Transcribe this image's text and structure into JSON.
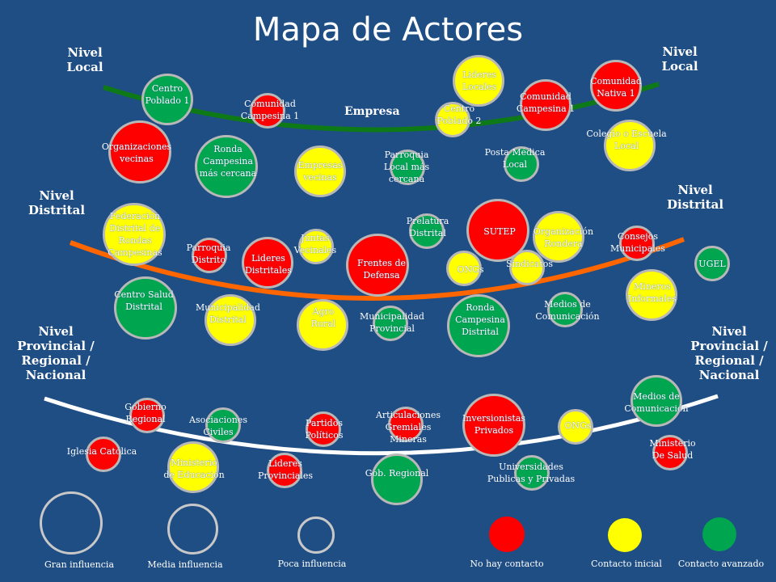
{
  "title": "Mapa de Actores",
  "levels": {
    "local_left": "Nivel\nLocal",
    "local_right": "Nivel\nLocal",
    "distrital_left": "Nivel\nDistrital",
    "distrital_right": "Nivel\nDistrital",
    "provincial_left": "Nivel\nProvincial /\nRegional /\nNacional",
    "provincial_right": "Nivel\nProvincial /\nRegional /\nNacional"
  },
  "empresa": "Empresa",
  "colors": {
    "background": "#1f4e84",
    "no_contact": "#ff0000",
    "initial_contact": "#ffff00",
    "advanced_contact": "#00a550",
    "arc_local": "#0e7a17",
    "arc_distrital": "#ff6600",
    "arc_provincial": "#ffffff"
  },
  "actors": [
    {
      "label": "Centro\nPoblado 1",
      "contact": "green",
      "influence": "media"
    },
    {
      "label": "Comunidad\nCampesina 1",
      "contact": "red",
      "influence": "poca"
    },
    {
      "label": "Lideres\nLocales",
      "contact": "yellow",
      "influence": "media"
    },
    {
      "label": "Centro\nPoblado 2",
      "contact": "yellow",
      "influence": "poca"
    },
    {
      "label": "Comunidad\nCampesina 1",
      "contact": "red",
      "influence": "media"
    },
    {
      "label": "Comunidad\nNativa 1",
      "contact": "red",
      "influence": "media"
    },
    {
      "label": "Organizaciones\nvecinas",
      "contact": "red",
      "influence": "gran"
    },
    {
      "label": "Ronda\nCampesina\nmás cercana",
      "contact": "green",
      "influence": "gran"
    },
    {
      "label": "Empresas\nvecinas",
      "contact": "yellow",
      "influence": "media"
    },
    {
      "label": "Parroquia\nLocal más\ncercana",
      "contact": "green",
      "influence": "poca"
    },
    {
      "label": "Posta Médica\nLocal",
      "contact": "green",
      "influence": "poca"
    },
    {
      "label": "Colegio o Escuela\nLocal",
      "contact": "yellow",
      "influence": "media"
    },
    {
      "label": "Federación\nDistrital de\nRondas\nCampesinas",
      "contact": "yellow",
      "influence": "gran"
    },
    {
      "label": "Parroquia\nDistrito",
      "contact": "red",
      "influence": "poca"
    },
    {
      "label": "Juntas\nVecinales",
      "contact": "yellow",
      "influence": "poca"
    },
    {
      "label": "Lideres\nDistritales",
      "contact": "red",
      "influence": "media"
    },
    {
      "label": "Frentes de\nDefensa",
      "contact": "red",
      "influence": "gran"
    },
    {
      "label": "Prelatura\nDistrital",
      "contact": "green",
      "influence": "poca"
    },
    {
      "label": "SUTEP",
      "contact": "red",
      "influence": "gran"
    },
    {
      "label": "ONGs",
      "contact": "yellow",
      "influence": "poca"
    },
    {
      "label": "Sindicatos",
      "contact": "yellow",
      "influence": "poca"
    },
    {
      "label": "Organización\nRondera",
      "contact": "yellow",
      "influence": "media"
    },
    {
      "label": "Consejos\nMunicipales",
      "contact": "red",
      "influence": "poca"
    },
    {
      "label": "UGEL",
      "contact": "green",
      "influence": "poca"
    },
    {
      "label": "Centro Salud\nDistrital",
      "contact": "green",
      "influence": "gran"
    },
    {
      "label": "Municipalidad\nDistrital",
      "contact": "yellow",
      "influence": "media"
    },
    {
      "label": "Agro\nRural",
      "contact": "yellow",
      "influence": "media"
    },
    {
      "label": "Municipalidad\nProvincial",
      "contact": "green",
      "influence": "poca"
    },
    {
      "label": "Ronda\nCampesina\nDistrital",
      "contact": "green",
      "influence": "gran"
    },
    {
      "label": "Medios de\nComunicación",
      "contact": "green",
      "influence": "poca"
    },
    {
      "label": "Mineros\nInformales",
      "contact": "yellow",
      "influence": "media"
    },
    {
      "label": "Gobierno\nRegional",
      "contact": "red",
      "influence": "poca"
    },
    {
      "label": "Asociaciones\nCiviles",
      "contact": "green",
      "influence": "poca"
    },
    {
      "label": "Partidos\nPolíticos",
      "contact": "red",
      "influence": "poca"
    },
    {
      "label": "Articulaciones\nGremiales\nMineras",
      "contact": "red",
      "influence": "poca"
    },
    {
      "label": "Inversionistas\nPrivados",
      "contact": "red",
      "influence": "gran"
    },
    {
      "label": "ONGs",
      "contact": "yellow",
      "influence": "poca"
    },
    {
      "label": "Medios de\nComunicación",
      "contact": "green",
      "influence": "media"
    },
    {
      "label": "Iglesia Católica",
      "contact": "red",
      "influence": "poca"
    },
    {
      "label": "Ministerio\nde Educación",
      "contact": "yellow",
      "influence": "media"
    },
    {
      "label": "Lideres\nProvinciales",
      "contact": "red",
      "influence": "poca"
    },
    {
      "label": "Gob. Regional",
      "contact": "green",
      "influence": "media"
    },
    {
      "label": "Universidades\nPublicas y Privadas",
      "contact": "green",
      "influence": "poca"
    },
    {
      "label": "Ministerio\nDe Salud",
      "contact": "red",
      "influence": "poca"
    }
  ],
  "legend": {
    "gran": "Gran influencia",
    "media": "Media influencia",
    "poca": "Poca influencia",
    "no_contact": "No hay contacto",
    "initial": "Contacto inicial",
    "advanced": "Contacto avanzado"
  }
}
